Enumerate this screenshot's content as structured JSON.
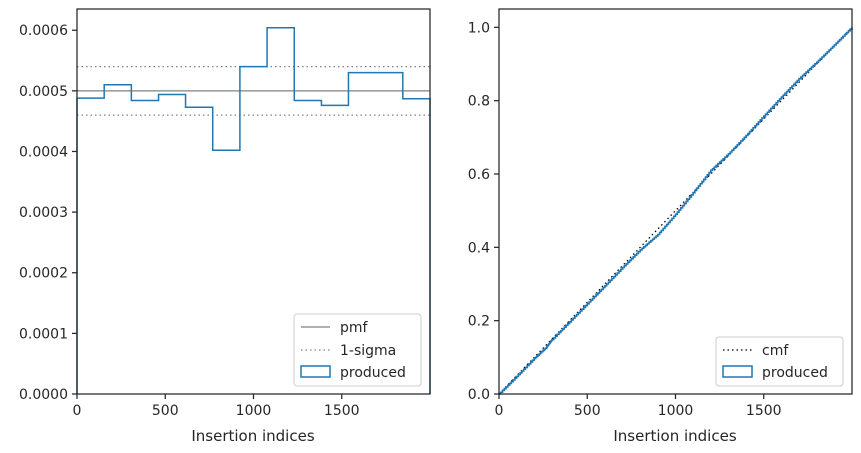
{
  "chart_data": [
    {
      "type": "histogram",
      "xlabel": "Insertion indices",
      "ylabel": "",
      "xlim": [
        0,
        2000
      ],
      "ylim": [
        0,
        0.000635
      ],
      "xticks": [
        0,
        500,
        1000,
        1500
      ],
      "xtick_labels": [
        "0",
        "500",
        "1000",
        "1500"
      ],
      "yticks": [
        0,
        0.0001,
        0.0002,
        0.0003,
        0.0004,
        0.0005,
        0.0006
      ],
      "ytick_labels": [
        "0.0000",
        "0.0001",
        "0.0002",
        "0.0003",
        "0.0004",
        "0.0005",
        "0.0006"
      ],
      "grid": false,
      "legend_position": "lower right",
      "bin_edges": [
        0,
        154,
        308,
        462,
        615,
        769,
        923,
        1077,
        1231,
        1385,
        1538,
        1692,
        1846,
        2000
      ],
      "series": [
        {
          "name": "pmf",
          "style": "solid",
          "color": "#808080",
          "y": 0.0005
        },
        {
          "name": "1-sigma",
          "style": "dotted",
          "color": "#808080",
          "y_lower": 0.00046,
          "y_upper": 0.00054
        },
        {
          "name": "produced",
          "style": "step",
          "color": "#1f77b4",
          "values": [
            0.000488,
            0.00051,
            0.000484,
            0.000494,
            0.000473,
            0.000402,
            0.00054,
            0.000604,
            0.000484,
            0.000476,
            0.00053,
            0.00053,
            0.000487
          ]
        }
      ]
    },
    {
      "type": "line",
      "xlabel": "Insertion indices",
      "ylabel": "",
      "xlim": [
        0,
        2000
      ],
      "ylim": [
        0,
        1.05
      ],
      "xticks": [
        0,
        500,
        1000,
        1500
      ],
      "xtick_labels": [
        "0",
        "500",
        "1000",
        "1500"
      ],
      "yticks": [
        0,
        0.2,
        0.4,
        0.6,
        0.8,
        1.0
      ],
      "ytick_labels": [
        "0.0",
        "0.2",
        "0.4",
        "0.6",
        "0.8",
        "1.0"
      ],
      "grid": false,
      "legend_position": "lower right",
      "series": [
        {
          "name": "cmf",
          "style": "dotted",
          "color": "#000000",
          "x": [
            0,
            2000
          ],
          "y": [
            0,
            1.0
          ]
        },
        {
          "name": "produced",
          "style": "step",
          "color": "#1f77b4",
          "x": [
            0,
            100,
            200,
            270,
            300,
            400,
            500,
            600,
            700,
            800,
            900,
            1000,
            1100,
            1200,
            1300,
            1400,
            1500,
            1600,
            1700,
            1800,
            1900,
            2000
          ],
          "y": [
            0,
            0.048,
            0.097,
            0.128,
            0.148,
            0.197,
            0.246,
            0.295,
            0.345,
            0.393,
            0.435,
            0.49,
            0.549,
            0.61,
            0.655,
            0.705,
            0.758,
            0.81,
            0.86,
            0.905,
            0.952,
            1.0
          ]
        }
      ]
    }
  ]
}
